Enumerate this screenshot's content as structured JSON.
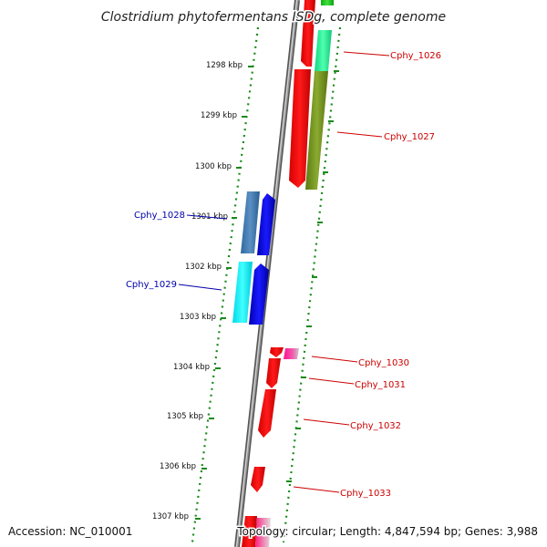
{
  "title": "Clostridium phytofermentans ISDg, complete genome",
  "footer": {
    "accession": "Accession: NC_010001",
    "summary": "Topology: circular; Length: 4,847,594 bp; Genes: 3,988"
  },
  "ticks": [
    "1298 kbp",
    "1299 kbp",
    "1300 kbp",
    "1301 kbp",
    "1302 kbp",
    "1303 kbp",
    "1304 kbp",
    "1305 kbp",
    "1306 kbp",
    "1307 kbp"
  ],
  "genes": {
    "forward": [
      "Cphy_1026",
      "Cphy_1027",
      "Cphy_1030",
      "Cphy_1031",
      "Cphy_1032",
      "Cphy_1033"
    ],
    "reverse": [
      "Cphy_1028",
      "Cphy_1029"
    ]
  },
  "colors": {
    "backbone": "#808080",
    "cds_forward": "#ff0000",
    "cds_reverse": "#0000ee",
    "dotted_ruler": "#1a8a1a",
    "label_forward": "#cc0000",
    "label_reverse": "#0000aa"
  }
}
